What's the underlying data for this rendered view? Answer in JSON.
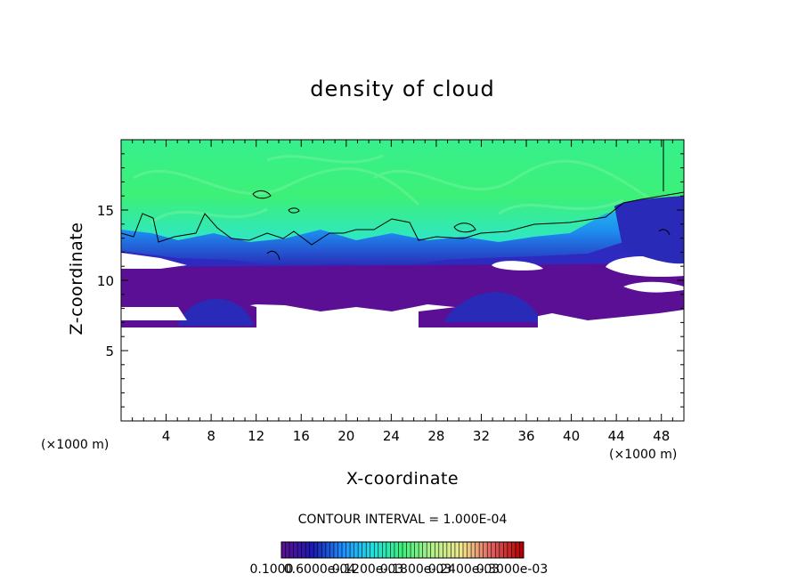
{
  "chart_data": {
    "type": "heatmap",
    "title": "density of cloud",
    "xlabel": "X-coordinate",
    "ylabel": "Z-coordinate",
    "x_unit_left": "(×1000 m)",
    "x_unit_right": "(×1000 m)",
    "xlim": [
      0,
      50
    ],
    "ylim": [
      0,
      20
    ],
    "xticks": [
      "4",
      "8",
      "12",
      "16",
      "20",
      "24",
      "28",
      "32",
      "36",
      "40",
      "44",
      "48"
    ],
    "yticks": [
      "5",
      "10",
      "15"
    ],
    "contour_interval_label": "CONTOUR INTERVAL = 1.000E-04",
    "colorbar_labels": [
      "0.1000",
      "0.6000e-04",
      "0.1200e-03",
      "0.1800e-03",
      "0.2400e-03",
      "0.3000e-03"
    ],
    "colorbar_colors": [
      "#5a0f94",
      "#1a1ab4",
      "#1e90ff",
      "#20e0e0",
      "#3ff07a",
      "#b4f08c",
      "#f0e68c",
      "#e06060",
      "#b40000"
    ],
    "field_regions": [
      {
        "name": "upper cloud deck",
        "x": [
          0,
          50
        ],
        "z": [
          14,
          19.8
        ],
        "level": 0.00018
      },
      {
        "name": "mid transition layer",
        "x": [
          0,
          50
        ],
        "z": [
          11,
          14
        ],
        "level": 8e-05
      },
      {
        "name": "lower cloud layer",
        "x": [
          0,
          50
        ],
        "z": [
          8.5,
          11.5
        ],
        "level": 1e-05
      },
      {
        "name": "left cloud base",
        "x": [
          0,
          12
        ],
        "z": [
          6.8,
          8.5
        ],
        "level": 1e-05
      },
      {
        "name": "right cloud base",
        "x": [
          26.5,
          36
        ],
        "z": [
          6.8,
          8.5
        ],
        "level": 1e-05
      }
    ]
  }
}
